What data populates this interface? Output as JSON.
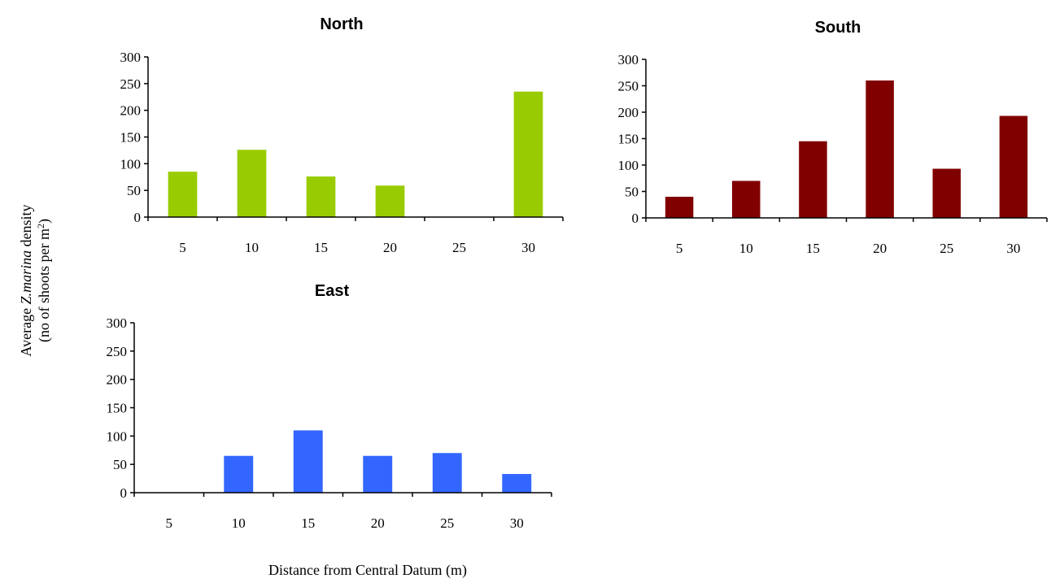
{
  "figure": {
    "ylabel_line1_pre": "Average ",
    "ylabel_line1_species": "Z.marina",
    "ylabel_line1_post": "  density",
    "ylabel_line2_pre": "(no of shoots per m",
    "ylabel_line2_sup": "2",
    "ylabel_line2_post": ")",
    "xlabel": "Distance from Central Datum (m)"
  },
  "chart_data": [
    {
      "type": "bar",
      "title": "North",
      "categories": [
        "5",
        "10",
        "15",
        "20",
        "25",
        "30"
      ],
      "values": [
        85,
        126,
        76,
        59,
        0,
        235
      ],
      "ylim": [
        0,
        300
      ],
      "yticks": [
        "0",
        "50",
        "100",
        "150",
        "200",
        "250",
        "300"
      ],
      "color": "#99CC00",
      "grid": false
    },
    {
      "type": "bar",
      "title": "South",
      "categories": [
        "5",
        "10",
        "15",
        "20",
        "25",
        "30"
      ],
      "values": [
        40,
        70,
        145,
        260,
        93,
        193
      ],
      "ylim": [
        0,
        300
      ],
      "yticks": [
        "0",
        "50",
        "100",
        "150",
        "200",
        "250",
        "300"
      ],
      "color": "#800000",
      "grid": false
    },
    {
      "type": "bar",
      "title": "East",
      "categories": [
        "5",
        "10",
        "15",
        "20",
        "25",
        "30"
      ],
      "values": [
        0,
        65,
        110,
        65,
        70,
        33
      ],
      "ylim": [
        0,
        300
      ],
      "yticks": [
        "0",
        "50",
        "100",
        "150",
        "200",
        "250",
        "300"
      ],
      "color": "#3366FF",
      "grid": false
    }
  ]
}
